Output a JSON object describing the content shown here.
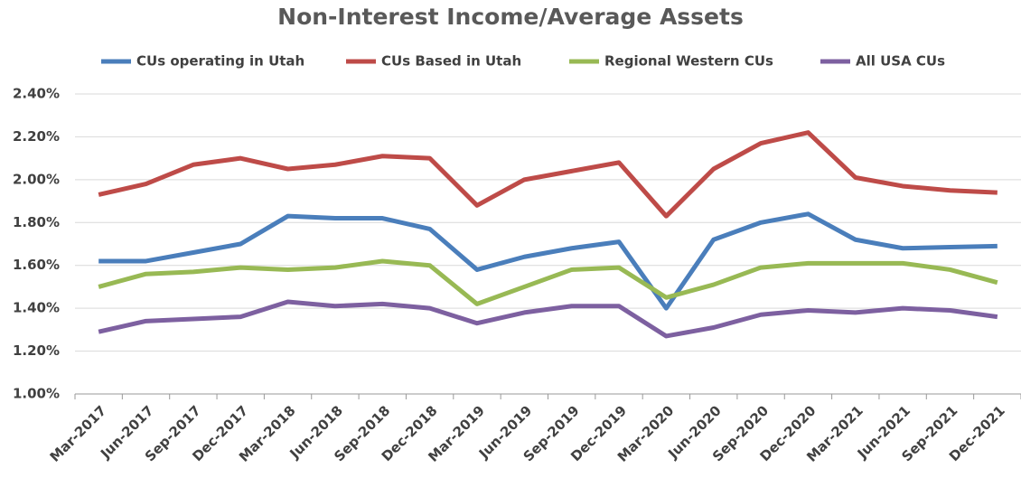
{
  "chart_data": {
    "type": "line",
    "title": "Non-Interest Income/Average Assets",
    "categories": [
      "Mar-2017",
      "Jun-2017",
      "Sep-2017",
      "Dec-2017",
      "Mar-2018",
      "Jun-2018",
      "Sep-2018",
      "Dec-2018",
      "Mar-2019",
      "Jun-2019",
      "Sep-2019",
      "Dec-2019",
      "Mar-2020",
      "Jun-2020",
      "Sep-2020",
      "Dec-2020",
      "Mar-2021",
      "Jun-2021",
      "Sep-2021",
      "Dec-2021"
    ],
    "series": [
      {
        "name": "CUs operating in Utah",
        "color": "#4a7ebb",
        "values": [
          1.62,
          1.62,
          1.66,
          1.7,
          1.83,
          1.82,
          1.82,
          1.77,
          1.58,
          1.64,
          1.68,
          1.71,
          1.4,
          1.72,
          1.8,
          1.84,
          1.72,
          1.68,
          1.685,
          1.69
        ]
      },
      {
        "name": "CUs Based in Utah",
        "color": "#be4b48",
        "values": [
          1.93,
          1.98,
          2.07,
          2.1,
          2.05,
          2.07,
          2.11,
          2.1,
          1.88,
          2.0,
          2.04,
          2.08,
          1.83,
          2.05,
          2.17,
          2.22,
          2.01,
          1.97,
          1.95,
          1.94
        ]
      },
      {
        "name": "Regional Western CUs",
        "color": "#98b954",
        "values": [
          1.5,
          1.56,
          1.57,
          1.59,
          1.58,
          1.59,
          1.62,
          1.6,
          1.42,
          1.5,
          1.58,
          1.59,
          1.45,
          1.51,
          1.59,
          1.61,
          1.61,
          1.61,
          1.58,
          1.52
        ]
      },
      {
        "name": "All USA CUs",
        "color": "#7d60a0",
        "values": [
          1.29,
          1.34,
          1.35,
          1.36,
          1.43,
          1.41,
          1.42,
          1.4,
          1.33,
          1.38,
          1.41,
          1.41,
          1.27,
          1.31,
          1.37,
          1.39,
          1.38,
          1.4,
          1.39,
          1.36
        ]
      }
    ],
    "ylim": [
      1.0,
      2.4
    ],
    "yticks": [
      {
        "value": 1.0,
        "label": "1.00%"
      },
      {
        "value": 1.2,
        "label": "1.20%"
      },
      {
        "value": 1.4,
        "label": "1.40%"
      },
      {
        "value": 1.6,
        "label": "1.60%"
      },
      {
        "value": 1.8,
        "label": "1.80%"
      },
      {
        "value": 2.0,
        "label": "2.00%"
      },
      {
        "value": 2.2,
        "label": "2.20%"
      },
      {
        "value": 2.4,
        "label": "2.40%"
      }
    ],
    "grid": true,
    "legend": "top"
  }
}
